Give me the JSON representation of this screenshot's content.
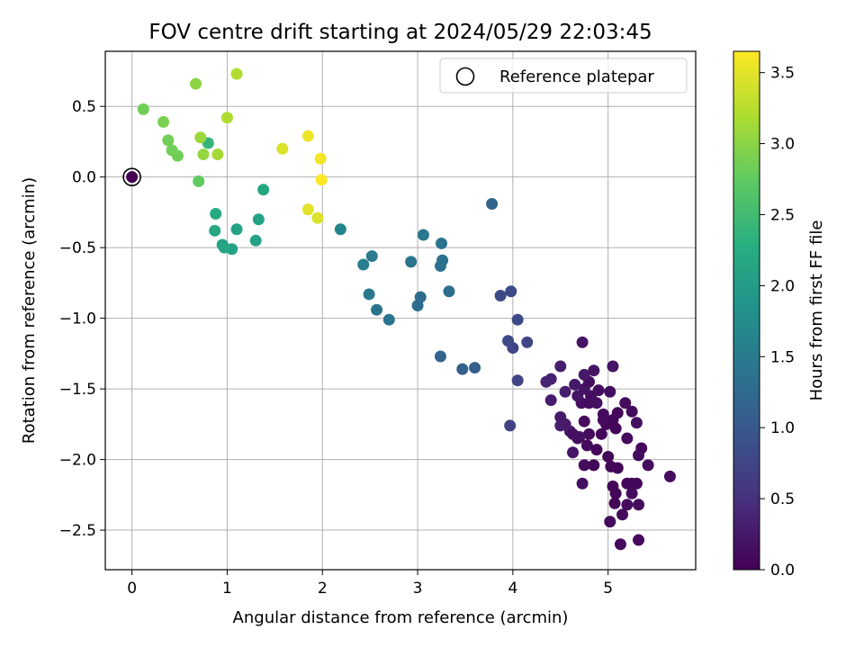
{
  "chart_data": {
    "type": "scatter",
    "title": "FOV centre drift starting at 2024/05/29 22:03:45",
    "xlabel": "Angular distance from reference (arcmin)",
    "ylabel": "Rotation from reference (arcmin)",
    "xlim": [
      -0.28,
      5.92
    ],
    "ylim": [
      -2.78,
      0.89
    ],
    "xticks": [
      0,
      1,
      2,
      3,
      4,
      5
    ],
    "xtick_labels": [
      "0",
      "1",
      "2",
      "3",
      "4",
      "5"
    ],
    "yticks": [
      0.5,
      0.0,
      -0.5,
      -1.0,
      -1.5,
      -2.0,
      -2.5
    ],
    "ytick_labels": [
      "0.5",
      "0.0",
      "−0.5",
      "−1.0",
      "−1.5",
      "−2.0",
      "−2.5"
    ],
    "grid": true,
    "legend": {
      "placement": "upper right",
      "entries": [
        "Reference platepar"
      ]
    },
    "colorbar": {
      "label": "Hours from first FF file",
      "colormap": "viridis",
      "range": [
        0.0,
        3.65
      ],
      "ticks": [
        0.0,
        0.5,
        1.0,
        1.5,
        2.0,
        2.5,
        3.0,
        3.5
      ],
      "tick_labels": [
        "0.0",
        "0.5",
        "1.0",
        "1.5",
        "2.0",
        "2.5",
        "3.0",
        "3.5"
      ]
    },
    "reference_point": {
      "x": 0,
      "y": 0
    },
    "points": [
      {
        "x": 0.0,
        "y": 0.0,
        "h": 0.0
      },
      {
        "x": 4.73,
        "y": -1.17,
        "h": 0.2
      },
      {
        "x": 4.95,
        "y": -1.68,
        "h": 0.1
      },
      {
        "x": 5.05,
        "y": -1.34,
        "h": 0.2
      },
      {
        "x": 5.18,
        "y": -1.6,
        "h": 0.1
      },
      {
        "x": 5.25,
        "y": -1.66,
        "h": 0.1
      },
      {
        "x": 5.3,
        "y": -1.74,
        "h": 0.15
      },
      {
        "x": 5.2,
        "y": -1.85,
        "h": 0.1
      },
      {
        "x": 5.35,
        "y": -1.92,
        "h": 0.1
      },
      {
        "x": 5.42,
        "y": -2.04,
        "h": 0.1
      },
      {
        "x": 5.32,
        "y": -1.97,
        "h": 0.1
      },
      {
        "x": 5.65,
        "y": -2.12,
        "h": 0.1
      },
      {
        "x": 5.25,
        "y": -2.17,
        "h": 0.05
      },
      {
        "x": 5.3,
        "y": -2.17,
        "h": 0.05
      },
      {
        "x": 5.2,
        "y": -2.17,
        "h": 0.05
      },
      {
        "x": 5.25,
        "y": -2.24,
        "h": 0.1
      },
      {
        "x": 5.32,
        "y": -2.32,
        "h": 0.1
      },
      {
        "x": 5.2,
        "y": -2.32,
        "h": 0.1
      },
      {
        "x": 5.15,
        "y": -2.39,
        "h": 0.1
      },
      {
        "x": 5.02,
        "y": -2.44,
        "h": 0.1
      },
      {
        "x": 5.13,
        "y": -2.6,
        "h": 0.1
      },
      {
        "x": 5.32,
        "y": -2.57,
        "h": 0.1
      },
      {
        "x": 5.05,
        "y": -2.19,
        "h": 0.05
      },
      {
        "x": 5.08,
        "y": -2.24,
        "h": 0.05
      },
      {
        "x": 5.07,
        "y": -2.31,
        "h": 0.05
      },
      {
        "x": 5.1,
        "y": -2.06,
        "h": 0.05
      },
      {
        "x": 5.03,
        "y": -2.05,
        "h": 0.05
      },
      {
        "x": 5.0,
        "y": -1.98,
        "h": 0.05
      },
      {
        "x": 5.08,
        "y": -1.78,
        "h": 0.05
      },
      {
        "x": 5.05,
        "y": -1.72,
        "h": 0.05
      },
      {
        "x": 5.1,
        "y": -1.67,
        "h": 0.05
      },
      {
        "x": 4.98,
        "y": -1.75,
        "h": 0.05
      },
      {
        "x": 4.93,
        "y": -1.82,
        "h": 0.05
      },
      {
        "x": 4.88,
        "y": -1.93,
        "h": 0.05
      },
      {
        "x": 4.85,
        "y": -2.04,
        "h": 0.05
      },
      {
        "x": 4.73,
        "y": -2.17,
        "h": 0.15
      },
      {
        "x": 4.75,
        "y": -2.04,
        "h": 0.1
      },
      {
        "x": 4.78,
        "y": -1.9,
        "h": 0.1
      },
      {
        "x": 4.8,
        "y": -1.82,
        "h": 0.1
      },
      {
        "x": 4.75,
        "y": -1.73,
        "h": 0.1
      },
      {
        "x": 4.72,
        "y": -1.6,
        "h": 0.15
      },
      {
        "x": 4.68,
        "y": -1.55,
        "h": 0.2
      },
      {
        "x": 4.75,
        "y": -1.5,
        "h": 0.2
      },
      {
        "x": 4.8,
        "y": -1.45,
        "h": 0.15
      },
      {
        "x": 4.85,
        "y": -1.37,
        "h": 0.2
      },
      {
        "x": 4.75,
        "y": -1.4,
        "h": 0.25
      },
      {
        "x": 4.65,
        "y": -1.47,
        "h": 0.25
      },
      {
        "x": 4.55,
        "y": -1.52,
        "h": 0.3
      },
      {
        "x": 4.5,
        "y": -1.34,
        "h": 0.3
      },
      {
        "x": 4.4,
        "y": -1.43,
        "h": 0.35
      },
      {
        "x": 4.35,
        "y": -1.45,
        "h": 0.35
      },
      {
        "x": 4.4,
        "y": -1.58,
        "h": 0.3
      },
      {
        "x": 4.5,
        "y": -1.7,
        "h": 0.25
      },
      {
        "x": 4.5,
        "y": -1.76,
        "h": 0.3
      },
      {
        "x": 4.6,
        "y": -1.8,
        "h": 0.25
      },
      {
        "x": 4.63,
        "y": -1.95,
        "h": 0.2
      },
      {
        "x": 4.7,
        "y": -1.84,
        "h": 0.2
      },
      {
        "x": 4.8,
        "y": -1.6,
        "h": 0.15
      },
      {
        "x": 4.88,
        "y": -1.6,
        "h": 0.15
      },
      {
        "x": 4.95,
        "y": -1.72,
        "h": 0.1
      },
      {
        "x": 4.9,
        "y": -1.51,
        "h": 0.15
      },
      {
        "x": 4.82,
        "y": -1.55,
        "h": 0.15
      },
      {
        "x": 4.68,
        "y": -1.85,
        "h": 0.15
      },
      {
        "x": 4.63,
        "y": -1.82,
        "h": 0.15
      },
      {
        "x": 5.02,
        "y": -1.52,
        "h": 0.15
      },
      {
        "x": 4.55,
        "y": -1.75,
        "h": 0.25
      },
      {
        "x": 4.05,
        "y": -1.44,
        "h": 0.75
      },
      {
        "x": 4.0,
        "y": -1.21,
        "h": 0.75
      },
      {
        "x": 3.95,
        "y": -1.16,
        "h": 0.8
      },
      {
        "x": 4.15,
        "y": -1.17,
        "h": 0.75
      },
      {
        "x": 4.05,
        "y": -1.01,
        "h": 0.8
      },
      {
        "x": 3.97,
        "y": -1.76,
        "h": 0.7
      },
      {
        "x": 3.87,
        "y": -0.84,
        "h": 0.8
      },
      {
        "x": 3.98,
        "y": -0.81,
        "h": 0.8
      },
      {
        "x": 3.78,
        "y": -0.19,
        "h": 1.2
      },
      {
        "x": 3.6,
        "y": -1.35,
        "h": 1.1
      },
      {
        "x": 3.47,
        "y": -1.36,
        "h": 1.1
      },
      {
        "x": 3.24,
        "y": -1.27,
        "h": 1.15
      },
      {
        "x": 3.33,
        "y": -0.81,
        "h": 1.3
      },
      {
        "x": 3.26,
        "y": -0.59,
        "h": 1.35
      },
      {
        "x": 3.24,
        "y": -0.63,
        "h": 1.35
      },
      {
        "x": 3.25,
        "y": -0.47,
        "h": 1.4
      },
      {
        "x": 3.06,
        "y": -0.41,
        "h": 1.45
      },
      {
        "x": 3.03,
        "y": -0.85,
        "h": 1.3
      },
      {
        "x": 3.0,
        "y": -0.91,
        "h": 1.3
      },
      {
        "x": 2.93,
        "y": -0.6,
        "h": 1.4
      },
      {
        "x": 2.7,
        "y": -1.01,
        "h": 1.4
      },
      {
        "x": 2.57,
        "y": -0.94,
        "h": 1.4
      },
      {
        "x": 2.49,
        "y": -0.83,
        "h": 1.45
      },
      {
        "x": 2.52,
        "y": -0.56,
        "h": 1.5
      },
      {
        "x": 2.43,
        "y": -0.62,
        "h": 1.55
      },
      {
        "x": 2.19,
        "y": -0.37,
        "h": 1.65
      },
      {
        "x": 1.38,
        "y": -0.09,
        "h": 2.15
      },
      {
        "x": 1.33,
        "y": -0.3,
        "h": 2.1
      },
      {
        "x": 1.3,
        "y": -0.45,
        "h": 2.1
      },
      {
        "x": 1.1,
        "y": -0.37,
        "h": 2.1
      },
      {
        "x": 1.05,
        "y": -0.51,
        "h": 2.1
      },
      {
        "x": 0.95,
        "y": -0.48,
        "h": 2.1
      },
      {
        "x": 0.97,
        "y": -0.5,
        "h": 2.15
      },
      {
        "x": 0.87,
        "y": -0.38,
        "h": 2.15
      },
      {
        "x": 0.88,
        "y": -0.26,
        "h": 2.2
      },
      {
        "x": 0.8,
        "y": 0.24,
        "h": 2.4
      },
      {
        "x": 0.7,
        "y": -0.03,
        "h": 2.75
      },
      {
        "x": 0.48,
        "y": 0.15,
        "h": 2.85
      },
      {
        "x": 0.42,
        "y": 0.19,
        "h": 2.85
      },
      {
        "x": 0.38,
        "y": 0.26,
        "h": 2.85
      },
      {
        "x": 0.33,
        "y": 0.39,
        "h": 2.9
      },
      {
        "x": 0.12,
        "y": 0.48,
        "h": 2.85
      },
      {
        "x": 0.67,
        "y": 0.66,
        "h": 3.0
      },
      {
        "x": 1.1,
        "y": 0.73,
        "h": 3.2
      },
      {
        "x": 1.0,
        "y": 0.42,
        "h": 3.2
      },
      {
        "x": 0.72,
        "y": 0.28,
        "h": 3.1
      },
      {
        "x": 0.75,
        "y": 0.16,
        "h": 3.05
      },
      {
        "x": 0.9,
        "y": 0.16,
        "h": 3.15
      },
      {
        "x": 1.58,
        "y": 0.2,
        "h": 3.45
      },
      {
        "x": 1.85,
        "y": 0.29,
        "h": 3.55
      },
      {
        "x": 1.85,
        "y": -0.23,
        "h": 3.5
      },
      {
        "x": 1.95,
        "y": -0.29,
        "h": 3.45
      },
      {
        "x": 1.98,
        "y": 0.13,
        "h": 3.6
      },
      {
        "x": 1.99,
        "y": -0.02,
        "h": 3.65
      }
    ]
  }
}
